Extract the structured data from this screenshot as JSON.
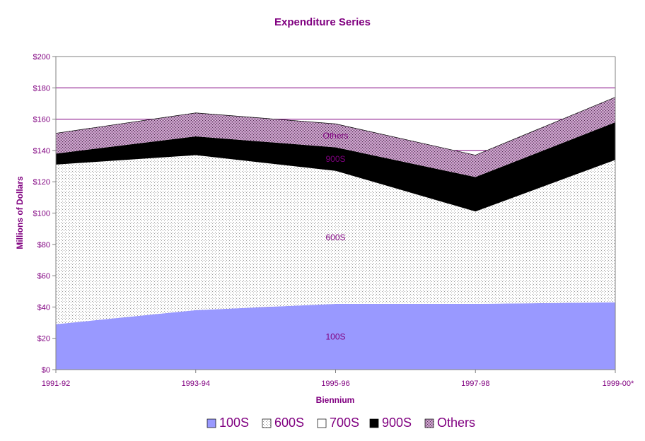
{
  "chart_data": {
    "type": "area",
    "title": "Expenditure Series",
    "xlabel": "Biennium",
    "ylabel": "Millions of Dollars",
    "categories": [
      "1991-92",
      "1993-94",
      "1995-96",
      "1997-98",
      "1999-00*"
    ],
    "ylim": [
      0,
      200
    ],
    "yticks": [
      0,
      20,
      40,
      60,
      80,
      100,
      120,
      140,
      160,
      180,
      200
    ],
    "ytick_labels": [
      "$0",
      "$20",
      "$40",
      "$60",
      "$80",
      "$100",
      "$120",
      "$140",
      "$160",
      "$180",
      "$200"
    ],
    "stacked": true,
    "grid": "horizontal",
    "legend_position": "bottom",
    "series": [
      {
        "name": "100S",
        "values": [
          29,
          38,
          42,
          42,
          43
        ],
        "color": "#9999ff",
        "pattern": "solid",
        "area_label": "100S"
      },
      {
        "name": "600S",
        "values": [
          102,
          99,
          85,
          59,
          91
        ],
        "color": "#c0c0c0",
        "pattern": "dots",
        "area_label": "600S"
      },
      {
        "name": "700S",
        "values": [
          0,
          0,
          0,
          0,
          0
        ],
        "color": "#ffffff",
        "pattern": "solid",
        "area_label": ""
      },
      {
        "name": "900S",
        "values": [
          7,
          12,
          15,
          22,
          24
        ],
        "color": "#000000",
        "pattern": "solid",
        "area_label": "900S"
      },
      {
        "name": "Others",
        "values": [
          13,
          15,
          15,
          14,
          16
        ],
        "color": "#996699",
        "pattern": "crosshatch",
        "area_label": "Others"
      }
    ]
  }
}
